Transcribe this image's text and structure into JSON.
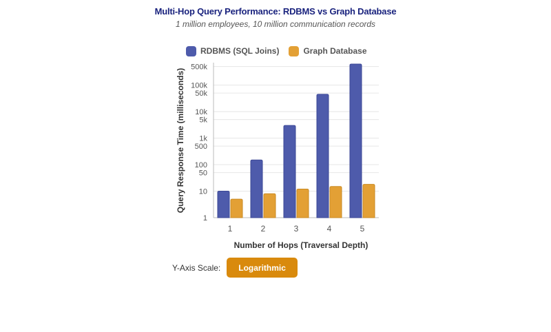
{
  "chart_data": {
    "type": "bar",
    "title": "Multi-Hop Query Performance: RDBMS vs Graph Database",
    "subtitle": "1 million employees, 10 million communication records",
    "xlabel": "Number of Hops (Traversal Depth)",
    "ylabel": "Query Response Time (milliseconds)",
    "yscale": "log",
    "ylim": [
      1,
      700000
    ],
    "categories": [
      "1",
      "2",
      "3",
      "4",
      "5"
    ],
    "yticks": [
      1,
      10,
      50,
      100,
      500,
      1000,
      5000,
      10000,
      50000,
      100000,
      500000
    ],
    "ytick_labels": [
      "1",
      "10",
      "50",
      "100",
      "500",
      "1k",
      "5k",
      "10k",
      "50k",
      "100k",
      "500k"
    ],
    "legend_position": "top",
    "grid": true,
    "series": [
      {
        "name": "RDBMS (SQL Joins)",
        "color": "#4e5bab",
        "values": [
          10,
          150,
          3000,
          45000,
          620000
        ]
      },
      {
        "name": "Graph Database",
        "color": "#e3a035",
        "values": [
          5,
          8,
          12,
          15,
          18
        ]
      }
    ]
  },
  "controls": {
    "scale_label": "Y-Axis Scale:",
    "scale_button": "Logarithmic"
  }
}
